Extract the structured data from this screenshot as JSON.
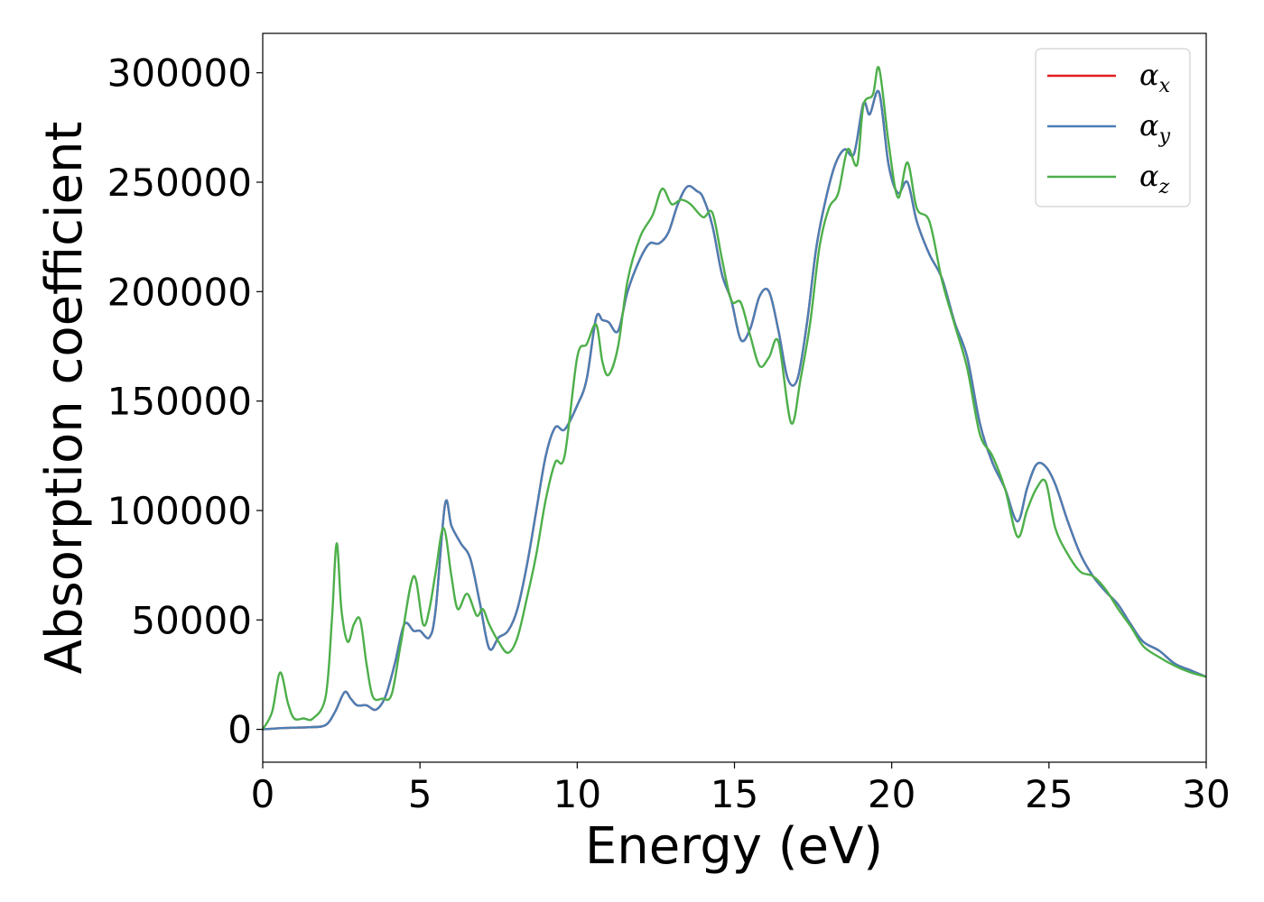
{
  "chart_data": {
    "type": "line",
    "xlabel": "Energy (eV)",
    "ylabel": "Absorption coefficient",
    "xlim": [
      0,
      30
    ],
    "ylim": [
      -15000,
      318000
    ],
    "xticks": [
      0,
      5,
      10,
      15,
      20,
      25,
      30
    ],
    "yticks": [
      0,
      50000,
      100000,
      150000,
      200000,
      250000,
      300000
    ],
    "xtick_labels": [
      "0",
      "5",
      "10",
      "15",
      "20",
      "25",
      "30"
    ],
    "ytick_labels": [
      "0",
      "50000",
      "100000",
      "150000",
      "200000",
      "250000",
      "300000"
    ],
    "grid": false,
    "legend_position": "top-right",
    "series": [
      {
        "name": "α",
        "subscript": "x",
        "color": "#e41a1c",
        "x": [
          0,
          0.5,
          1.0,
          1.5,
          2.0,
          2.3,
          2.6,
          2.8,
          3.0,
          3.3,
          3.6,
          3.9,
          4.2,
          4.5,
          4.8,
          5.0,
          5.3,
          5.5,
          5.8,
          6.0,
          6.3,
          6.6,
          6.9,
          7.2,
          7.5,
          7.8,
          8.1,
          8.4,
          8.7,
          9.0,
          9.3,
          9.6,
          10.0,
          10.3,
          10.6,
          10.8,
          11.0,
          11.3,
          11.6,
          12.0,
          12.3,
          12.6,
          12.9,
          13.2,
          13.5,
          13.8,
          14.0,
          14.3,
          14.6,
          14.9,
          15.2,
          15.5,
          15.8,
          16.1,
          16.4,
          16.7,
          17.0,
          17.3,
          17.6,
          17.9,
          18.2,
          18.5,
          18.8,
          19.1,
          19.3,
          19.6,
          19.9,
          20.2,
          20.5,
          20.8,
          21.2,
          21.6,
          22.0,
          22.4,
          22.8,
          23.2,
          23.6,
          24.0,
          24.3,
          24.6,
          24.9,
          25.2,
          25.6,
          26.0,
          26.4,
          26.8,
          27.2,
          27.6,
          28.0,
          28.5,
          29.0,
          29.5,
          30.0
        ],
        "values": [
          0,
          500,
          800,
          1000,
          2000,
          8000,
          17000,
          14000,
          11000,
          11000,
          9000,
          15000,
          30000,
          48000,
          45000,
          45000,
          42000,
          55000,
          103000,
          93000,
          85000,
          78000,
          58000,
          37000,
          42000,
          45000,
          55000,
          75000,
          100000,
          125000,
          138000,
          137000,
          148000,
          160000,
          188000,
          187000,
          186000,
          182000,
          200000,
          215000,
          222000,
          222000,
          227000,
          240000,
          248000,
          246000,
          243000,
          230000,
          208000,
          196000,
          178000,
          183000,
          198000,
          200000,
          182000,
          160000,
          160000,
          185000,
          220000,
          242000,
          258000,
          265000,
          263000,
          286000,
          281000,
          291000,
          258000,
          245000,
          250000,
          232000,
          217000,
          206000,
          186000,
          170000,
          140000,
          122000,
          110000,
          95000,
          110000,
          121000,
          120000,
          112000,
          95000,
          80000,
          70000,
          63000,
          57000,
          48000,
          40000,
          36000,
          30000,
          27000,
          24000
        ]
      },
      {
        "name": "α",
        "subscript": "y",
        "color": "#4a7fb5",
        "x": [
          0,
          0.5,
          1.0,
          1.5,
          2.0,
          2.3,
          2.6,
          2.8,
          3.0,
          3.3,
          3.6,
          3.9,
          4.2,
          4.5,
          4.8,
          5.0,
          5.3,
          5.5,
          5.8,
          6.0,
          6.3,
          6.6,
          6.9,
          7.2,
          7.5,
          7.8,
          8.1,
          8.4,
          8.7,
          9.0,
          9.3,
          9.6,
          10.0,
          10.3,
          10.6,
          10.8,
          11.0,
          11.3,
          11.6,
          12.0,
          12.3,
          12.6,
          12.9,
          13.2,
          13.5,
          13.8,
          14.0,
          14.3,
          14.6,
          14.9,
          15.2,
          15.5,
          15.8,
          16.1,
          16.4,
          16.7,
          17.0,
          17.3,
          17.6,
          17.9,
          18.2,
          18.5,
          18.8,
          19.1,
          19.3,
          19.6,
          19.9,
          20.2,
          20.5,
          20.8,
          21.2,
          21.6,
          22.0,
          22.4,
          22.8,
          23.2,
          23.6,
          24.0,
          24.3,
          24.6,
          24.9,
          25.2,
          25.6,
          26.0,
          26.4,
          26.8,
          27.2,
          27.6,
          28.0,
          28.5,
          29.0,
          29.5,
          30.0
        ],
        "values": [
          0,
          500,
          800,
          1000,
          2000,
          8000,
          17000,
          14000,
          11000,
          11000,
          9000,
          15000,
          30000,
          48000,
          45000,
          45000,
          42000,
          55000,
          103000,
          93000,
          85000,
          78000,
          58000,
          37000,
          42000,
          45000,
          55000,
          75000,
          100000,
          125000,
          138000,
          137000,
          148000,
          160000,
          188000,
          187000,
          186000,
          182000,
          200000,
          215000,
          222000,
          222000,
          227000,
          240000,
          248000,
          246000,
          243000,
          230000,
          208000,
          196000,
          178000,
          183000,
          198000,
          200000,
          182000,
          160000,
          160000,
          185000,
          220000,
          242000,
          258000,
          265000,
          263000,
          286000,
          281000,
          291000,
          258000,
          245000,
          250000,
          232000,
          217000,
          206000,
          186000,
          170000,
          140000,
          122000,
          110000,
          95000,
          110000,
          121000,
          120000,
          112000,
          95000,
          80000,
          70000,
          63000,
          57000,
          48000,
          40000,
          36000,
          30000,
          27000,
          24000
        ]
      },
      {
        "name": "α",
        "subscript": "z",
        "color": "#4daf4a",
        "x": [
          0,
          0.3,
          0.55,
          0.8,
          1.0,
          1.3,
          1.6,
          2.0,
          2.2,
          2.35,
          2.5,
          2.7,
          2.9,
          3.1,
          3.3,
          3.5,
          3.8,
          4.1,
          4.4,
          4.8,
          5.1,
          5.3,
          5.5,
          5.75,
          6.0,
          6.2,
          6.5,
          6.8,
          7.0,
          7.2,
          7.5,
          7.8,
          8.1,
          8.4,
          8.7,
          9.0,
          9.3,
          9.6,
          10.0,
          10.3,
          10.6,
          10.8,
          11.0,
          11.3,
          11.6,
          12.0,
          12.4,
          12.7,
          13.0,
          13.3,
          13.6,
          14.0,
          14.3,
          14.6,
          14.9,
          15.2,
          15.5,
          15.8,
          16.1,
          16.4,
          16.8,
          17.1,
          17.4,
          17.7,
          18.0,
          18.3,
          18.6,
          18.9,
          19.1,
          19.4,
          19.6,
          19.9,
          20.2,
          20.5,
          20.8,
          21.2,
          21.6,
          22.0,
          22.4,
          22.8,
          23.2,
          23.6,
          24.0,
          24.3,
          24.6,
          24.9,
          25.2,
          25.6,
          26.0,
          26.4,
          26.8,
          27.2,
          27.6,
          28.0,
          28.5,
          29.0,
          29.5,
          30.0
        ],
        "values": [
          0,
          8000,
          26000,
          12000,
          5000,
          5000,
          5000,
          15000,
          50000,
          85000,
          55000,
          40000,
          48000,
          50000,
          30000,
          15000,
          14000,
          16000,
          40000,
          70000,
          48000,
          55000,
          72000,
          92000,
          70000,
          55000,
          62000,
          52000,
          55000,
          48000,
          40000,
          35000,
          42000,
          60000,
          80000,
          105000,
          122000,
          125000,
          170000,
          176000,
          185000,
          168000,
          162000,
          175000,
          205000,
          225000,
          235000,
          247000,
          240000,
          242000,
          240000,
          234000,
          236000,
          215000,
          196000,
          195000,
          180000,
          166000,
          170000,
          177000,
          140000,
          160000,
          185000,
          220000,
          238000,
          245000,
          265000,
          258000,
          285000,
          290000,
          302000,
          268000,
          243000,
          259000,
          238000,
          232000,
          205000,
          185000,
          165000,
          135000,
          125000,
          110000,
          88000,
          100000,
          110000,
          113000,
          92000,
          80000,
          72000,
          70000,
          64000,
          55000,
          47000,
          38000,
          33000,
          29000,
          26000,
          24000
        ]
      }
    ]
  }
}
